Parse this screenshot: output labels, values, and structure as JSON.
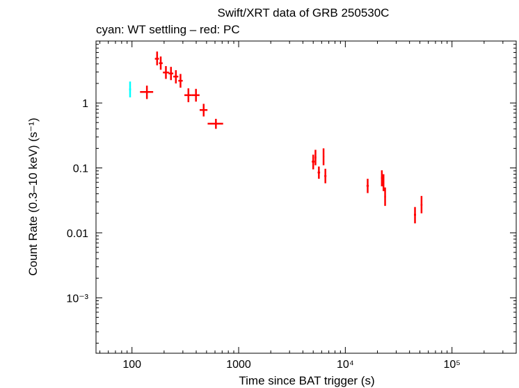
{
  "chart_data": {
    "type": "scatter",
    "title": "Swift/XRT data of GRB 250530C",
    "subtitle": "cyan: WT settling – red: PC",
    "xlabel": "Time since BAT trigger (s)",
    "ylabel": "Count Rate (0.3–10 keV) (s⁻¹)",
    "xscale": "log",
    "yscale": "log",
    "xlim": [
      46,
      400000
    ],
    "ylim": [
      0.00014,
      9
    ],
    "x_ticks": [
      {
        "value": 100,
        "label": "100"
      },
      {
        "value": 1000,
        "label": "1000"
      },
      {
        "value": 10000,
        "label": "10⁴"
      },
      {
        "value": 100000,
        "label": "10⁵"
      }
    ],
    "y_ticks": [
      {
        "value": 1,
        "label": "1"
      },
      {
        "value": 0.1,
        "label": "0.1"
      },
      {
        "value": 0.01,
        "label": "0.01"
      },
      {
        "value": 0.001,
        "label": "10⁻³"
      }
    ],
    "series": [
      {
        "name": "WT settling",
        "color": "#00ffff",
        "points": [
          {
            "x": 96,
            "xlo": 94,
            "xhi": 98,
            "y": 1.62,
            "ylo": 1.22,
            "yhi": 2.14
          }
        ]
      },
      {
        "name": "PC",
        "color": "#ff0000",
        "points": [
          {
            "x": 138,
            "xlo": 119,
            "xhi": 158,
            "y": 1.48,
            "ylo": 1.15,
            "yhi": 1.85
          },
          {
            "x": 172,
            "xlo": 164,
            "xhi": 179,
            "y": 4.8,
            "ylo": 3.8,
            "yhi": 6.2
          },
          {
            "x": 186,
            "xlo": 179,
            "xhi": 194,
            "y": 4.1,
            "ylo": 3.25,
            "yhi": 5.2
          },
          {
            "x": 208,
            "xlo": 195,
            "xhi": 222,
            "y": 2.95,
            "ylo": 2.35,
            "yhi": 3.7
          },
          {
            "x": 232,
            "xlo": 220,
            "xhi": 244,
            "y": 2.85,
            "ylo": 2.25,
            "yhi": 3.6
          },
          {
            "x": 258,
            "xlo": 244,
            "xhi": 272,
            "y": 2.55,
            "ylo": 2.0,
            "yhi": 3.2
          },
          {
            "x": 285,
            "xlo": 272,
            "xhi": 299,
            "y": 2.2,
            "ylo": 1.72,
            "yhi": 2.8
          },
          {
            "x": 338,
            "xlo": 310,
            "xhi": 362,
            "y": 1.32,
            "ylo": 1.03,
            "yhi": 1.68
          },
          {
            "x": 398,
            "xlo": 362,
            "xhi": 430,
            "y": 1.32,
            "ylo": 1.05,
            "yhi": 1.65
          },
          {
            "x": 470,
            "xlo": 431,
            "xhi": 510,
            "y": 0.78,
            "ylo": 0.62,
            "yhi": 0.97
          },
          {
            "x": 612,
            "xlo": 512,
            "xhi": 715,
            "y": 0.48,
            "ylo": 0.4,
            "yhi": 0.57
          },
          {
            "x": 5000,
            "xlo": 4850,
            "xhi": 5150,
            "y": 0.125,
            "ylo": 0.095,
            "yhi": 0.16
          },
          {
            "x": 5250,
            "xlo": 5150,
            "xhi": 5350,
            "y": 0.145,
            "ylo": 0.11,
            "yhi": 0.19
          },
          {
            "x": 5650,
            "xlo": 5500,
            "xhi": 5800,
            "y": 0.085,
            "ylo": 0.068,
            "yhi": 0.105
          },
          {
            "x": 6250,
            "xlo": 6150,
            "xhi": 6350,
            "y": 0.15,
            "ylo": 0.11,
            "yhi": 0.2
          },
          {
            "x": 6500,
            "xlo": 6350,
            "xhi": 6650,
            "y": 0.075,
            "ylo": 0.058,
            "yhi": 0.097
          },
          {
            "x": 16200,
            "xlo": 15800,
            "xhi": 16600,
            "y": 0.053,
            "ylo": 0.041,
            "yhi": 0.068
          },
          {
            "x": 22000,
            "xlo": 21600,
            "xhi": 22400,
            "y": 0.07,
            "ylo": 0.052,
            "yhi": 0.092
          },
          {
            "x": 22800,
            "xlo": 22400,
            "xhi": 23200,
            "y": 0.058,
            "ylo": 0.044,
            "yhi": 0.08
          },
          {
            "x": 23600,
            "xlo": 23200,
            "xhi": 24000,
            "y": 0.036,
            "ylo": 0.026,
            "yhi": 0.05
          },
          {
            "x": 45000,
            "xlo": 44000,
            "xhi": 46000,
            "y": 0.019,
            "ylo": 0.014,
            "yhi": 0.025
          },
          {
            "x": 51800,
            "xlo": 50800,
            "xhi": 52800,
            "y": 0.027,
            "ylo": 0.02,
            "yhi": 0.037
          }
        ]
      }
    ]
  }
}
